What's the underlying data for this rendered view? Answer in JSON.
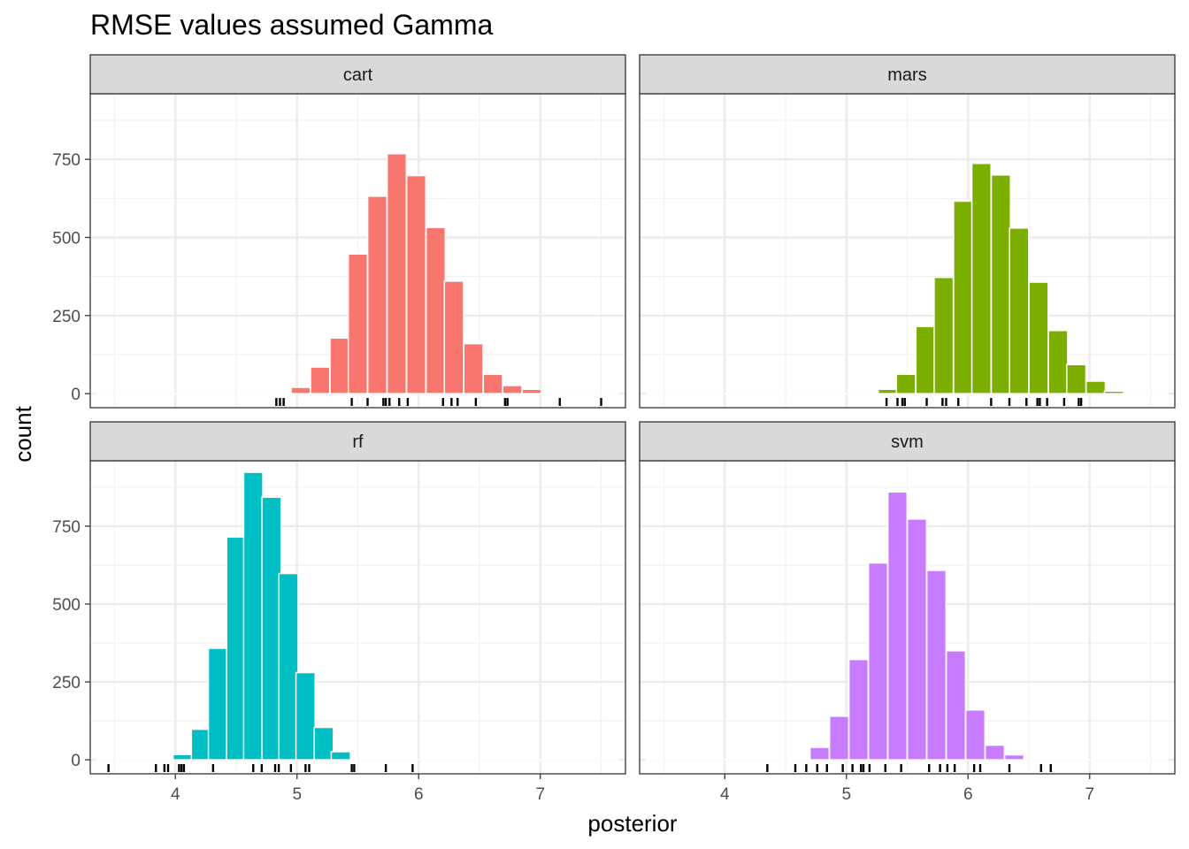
{
  "chart_data": {
    "type": "bar",
    "title": "RMSE values assumed Gamma",
    "xlabel": "posterior",
    "ylabel": "count",
    "xlim": [
      3.3,
      7.7
    ],
    "ylim": [
      -45,
      960
    ],
    "x_ticks": [
      4,
      5,
      6,
      7
    ],
    "x_tick_labels": [
      "4",
      "5",
      "6",
      "7"
    ],
    "y_ticks": [
      0,
      250,
      500,
      750
    ],
    "y_tick_labels": [
      "0",
      "250",
      "500",
      "750"
    ],
    "grid": true,
    "legend": "none",
    "bin_width": 0.1575,
    "panels": [
      {
        "label": "cart",
        "color": "#F8766D",
        "bins": [
          {
            "x": 5.03,
            "count": 20
          },
          {
            "x": 5.19,
            "count": 85
          },
          {
            "x": 5.35,
            "count": 178
          },
          {
            "x": 5.5,
            "count": 447
          },
          {
            "x": 5.66,
            "count": 632
          },
          {
            "x": 5.82,
            "count": 768
          },
          {
            "x": 5.98,
            "count": 698
          },
          {
            "x": 6.14,
            "count": 532
          },
          {
            "x": 6.29,
            "count": 360
          },
          {
            "x": 6.45,
            "count": 160
          },
          {
            "x": 6.61,
            "count": 62
          },
          {
            "x": 6.77,
            "count": 26
          },
          {
            "x": 6.93,
            "count": 14
          }
        ],
        "rug": [
          4.83,
          4.86,
          4.89,
          5.45,
          5.58,
          5.71,
          5.73,
          5.76,
          5.84,
          5.91,
          6.2,
          6.27,
          6.32,
          6.47,
          6.71,
          6.73,
          7.16,
          7.5
        ]
      },
      {
        "label": "mars",
        "color": "#7CAE00",
        "bins": [
          {
            "x": 5.34,
            "count": 14
          },
          {
            "x": 5.49,
            "count": 62
          },
          {
            "x": 5.65,
            "count": 215
          },
          {
            "x": 5.8,
            "count": 372
          },
          {
            "x": 5.96,
            "count": 616
          },
          {
            "x": 6.11,
            "count": 737
          },
          {
            "x": 6.27,
            "count": 700
          },
          {
            "x": 6.42,
            "count": 530
          },
          {
            "x": 6.58,
            "count": 357
          },
          {
            "x": 6.74,
            "count": 202
          },
          {
            "x": 6.89,
            "count": 93
          },
          {
            "x": 7.05,
            "count": 40
          },
          {
            "x": 7.2,
            "count": 8
          }
        ],
        "rug": [
          5.33,
          5.42,
          5.46,
          5.48,
          5.66,
          5.79,
          5.82,
          5.92,
          6.19,
          6.34,
          6.48,
          6.57,
          6.59,
          6.65,
          6.79,
          6.91,
          6.93
        ]
      },
      {
        "label": "rf",
        "color": "#00BFC4",
        "bins": [
          {
            "x": 4.06,
            "count": 17
          },
          {
            "x": 4.21,
            "count": 98
          },
          {
            "x": 4.35,
            "count": 358
          },
          {
            "x": 4.5,
            "count": 715
          },
          {
            "x": 4.64,
            "count": 923
          },
          {
            "x": 4.79,
            "count": 843
          },
          {
            "x": 4.93,
            "count": 598
          },
          {
            "x": 5.07,
            "count": 280
          },
          {
            "x": 5.22,
            "count": 104
          },
          {
            "x": 5.36,
            "count": 26
          }
        ],
        "rug": [
          3.45,
          3.84,
          3.91,
          3.94,
          4.03,
          4.05,
          4.07,
          4.31,
          4.64,
          4.71,
          4.82,
          4.85,
          4.95,
          5.07,
          5.1,
          5.45,
          5.47,
          5.73,
          5.95
        ]
      },
      {
        "label": "svm",
        "color": "#C77CFF",
        "bins": [
          {
            "x": 4.78,
            "count": 40
          },
          {
            "x": 4.94,
            "count": 140
          },
          {
            "x": 5.1,
            "count": 322
          },
          {
            "x": 5.26,
            "count": 632
          },
          {
            "x": 5.42,
            "count": 860
          },
          {
            "x": 5.58,
            "count": 773
          },
          {
            "x": 5.74,
            "count": 608
          },
          {
            "x": 5.9,
            "count": 350
          },
          {
            "x": 6.06,
            "count": 160
          },
          {
            "x": 6.22,
            "count": 47
          },
          {
            "x": 6.38,
            "count": 16
          }
        ],
        "rug": [
          4.35,
          4.58,
          4.67,
          4.76,
          4.84,
          4.97,
          5.05,
          5.12,
          5.14,
          5.19,
          5.32,
          5.45,
          5.68,
          5.77,
          5.83,
          5.89,
          6.05,
          6.1,
          6.34,
          6.6,
          6.68
        ]
      }
    ]
  }
}
